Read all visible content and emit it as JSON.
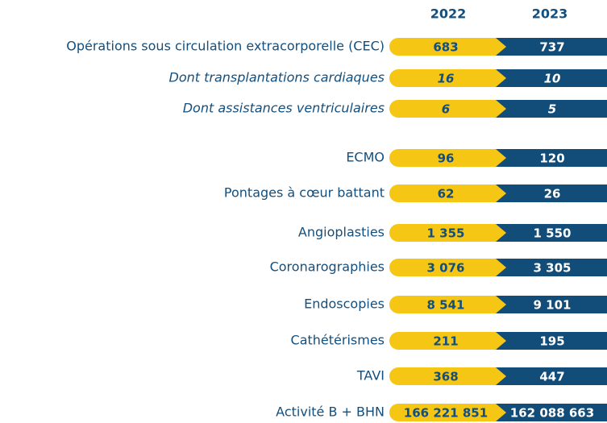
{
  "table": {
    "columns": [
      "2022",
      "2023"
    ],
    "rows": [
      {
        "label": "Opérations sous circulation extracorporelle (CEC)",
        "italic": false,
        "cells": [
          "683",
          "737"
        ]
      },
      {
        "label": "Dont transplantations cardiaques",
        "italic": true,
        "cells": [
          "16",
          "10"
        ]
      },
      {
        "label": "Dont assistances ventriculaires",
        "italic": true,
        "cells": [
          "6",
          "5"
        ]
      },
      {
        "label": "ECMO",
        "italic": false,
        "cells": [
          "96",
          "120"
        ]
      },
      {
        "label": "Pontages à cœur battant",
        "italic": false,
        "cells": [
          "62",
          "26"
        ]
      },
      {
        "label": "Angioplasties",
        "italic": false,
        "cells": [
          "1 355",
          "1 550"
        ]
      },
      {
        "label": "Coronarographies",
        "italic": false,
        "cells": [
          "3 076",
          "3 305"
        ]
      },
      {
        "label": "Endoscopies",
        "italic": false,
        "cells": [
          "8 541",
          "9 101"
        ]
      },
      {
        "label": "Cathétérismes",
        "italic": false,
        "cells": [
          "211",
          "195"
        ]
      },
      {
        "label": "TAVI",
        "italic": false,
        "cells": [
          "368",
          "447"
        ]
      },
      {
        "label": "Activité B + BHN",
        "italic": false,
        "cells": [
          "166 221 851",
          "162 088 663"
        ]
      }
    ]
  }
}
